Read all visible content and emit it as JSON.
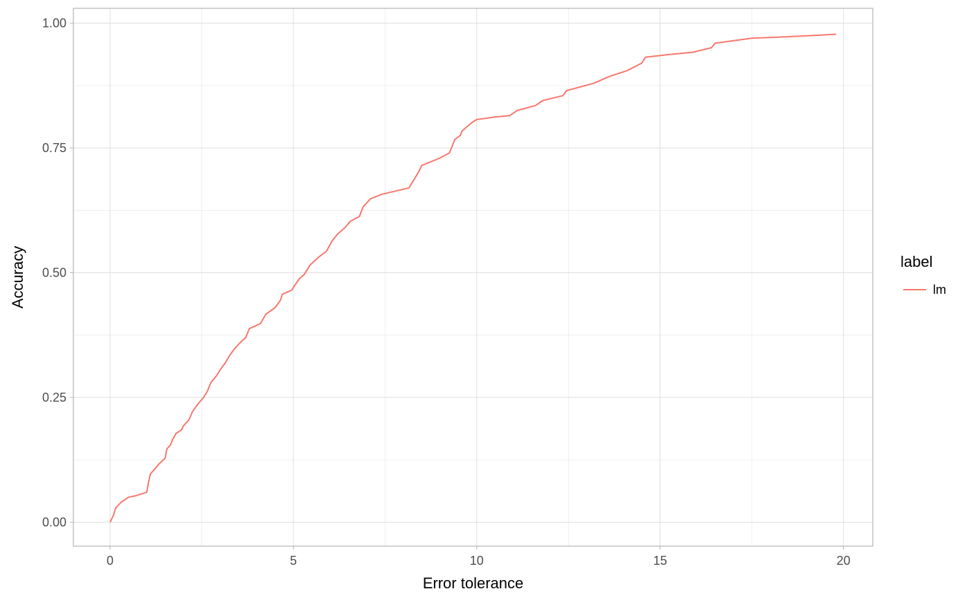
{
  "chart_data": {
    "type": "line",
    "xlabel": "Error tolerance",
    "ylabel": "Accuracy",
    "xlim": [
      -1,
      20.8
    ],
    "ylim": [
      -0.048,
      1.03
    ],
    "x_ticks": [
      0,
      5,
      10,
      15,
      20
    ],
    "x_tick_labels": [
      "0",
      "5",
      "10",
      "15",
      "20"
    ],
    "y_ticks": [
      0,
      0.25,
      0.5,
      0.75,
      1.0
    ],
    "y_tick_labels": [
      "0.00",
      "0.25",
      "0.50",
      "0.75",
      "1.00"
    ],
    "grid": true,
    "legend": {
      "title": "label",
      "position": "right"
    },
    "series": [
      {
        "name": "lm",
        "color": "#F8766D",
        "x": [
          0,
          0.1,
          0.15,
          0.2,
          0.3,
          0.5,
          0.7,
          1.0,
          1.05,
          1.1,
          1.2,
          1.35,
          1.5,
          1.55,
          1.65,
          1.7,
          1.8,
          1.95,
          2.0,
          2.15,
          2.25,
          2.4,
          2.55,
          2.65,
          2.75,
          2.9,
          3.0,
          3.15,
          3.25,
          3.4,
          3.55,
          3.7,
          3.8,
          4.1,
          4.25,
          4.5,
          4.65,
          4.7,
          4.95,
          5.15,
          5.3,
          5.45,
          5.7,
          5.9,
          6.05,
          6.2,
          6.4,
          6.55,
          6.8,
          6.9,
          7.1,
          7.4,
          8.15,
          8.4,
          8.5,
          9.0,
          9.25,
          9.3,
          9.4,
          9.55,
          9.6,
          9.85,
          10.0,
          10.5,
          10.9,
          11.1,
          11.6,
          11.8,
          12.35,
          12.45,
          13.2,
          13.6,
          14.1,
          14.5,
          14.6,
          15.2,
          15.9,
          16.4,
          16.5,
          17.0,
          17.5,
          18.5,
          19.3,
          19.8
        ],
        "y": [
          0.0,
          0.015,
          0.028,
          0.032,
          0.04,
          0.05,
          0.053,
          0.06,
          0.08,
          0.097,
          0.105,
          0.118,
          0.128,
          0.147,
          0.155,
          0.165,
          0.178,
          0.185,
          0.193,
          0.205,
          0.222,
          0.237,
          0.25,
          0.262,
          0.28,
          0.293,
          0.305,
          0.32,
          0.333,
          0.348,
          0.36,
          0.37,
          0.388,
          0.398,
          0.417,
          0.43,
          0.445,
          0.457,
          0.465,
          0.487,
          0.497,
          0.515,
          0.532,
          0.543,
          0.563,
          0.577,
          0.59,
          0.603,
          0.613,
          0.632,
          0.648,
          0.657,
          0.67,
          0.7,
          0.715,
          0.73,
          0.74,
          0.748,
          0.767,
          0.775,
          0.784,
          0.8,
          0.807,
          0.812,
          0.815,
          0.825,
          0.835,
          0.845,
          0.855,
          0.865,
          0.88,
          0.893,
          0.905,
          0.92,
          0.932,
          0.937,
          0.942,
          0.951,
          0.96,
          0.965,
          0.97,
          0.973,
          0.976,
          0.978
        ]
      }
    ]
  }
}
